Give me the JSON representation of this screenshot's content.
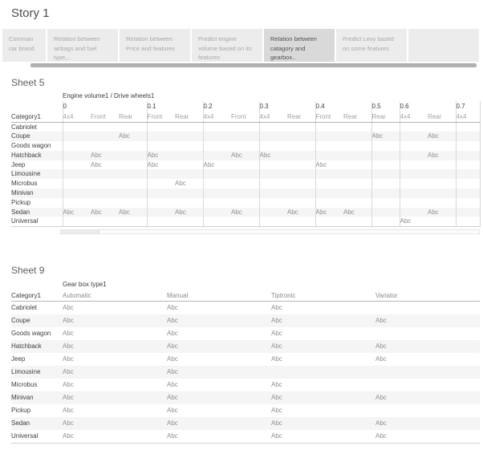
{
  "story": {
    "title": "Story 1",
    "tabs": [
      {
        "label": "Comman car brand",
        "selected": false
      },
      {
        "label": "Relation between airbags and fuel type,..",
        "selected": false
      },
      {
        "label": "Relation between Price and features",
        "selected": false
      },
      {
        "label": "Predict engine volume based on its features",
        "selected": false
      },
      {
        "label": "Relation between catagory and gearbox..",
        "selected": true
      },
      {
        "label": "Predict Levy based on some features",
        "selected": false
      },
      {
        "label": "",
        "selected": false
      }
    ]
  },
  "sheet5": {
    "title": "Sheet 5",
    "column_header_title": "Engine volume1 / Drive wheels1",
    "row_header_title": "Category1",
    "mark_label": "Abc",
    "column_groups": [
      {
        "label": "0",
        "subs": [
          "4x4",
          "Front",
          "Rear"
        ]
      },
      {
        "label": "0.1",
        "subs": [
          "Front",
          "Rear"
        ]
      },
      {
        "label": "0.2",
        "subs": [
          "4x4",
          "Front"
        ]
      },
      {
        "label": "0.3",
        "subs": [
          "4x4",
          "Rear"
        ]
      },
      {
        "label": "0.4",
        "subs": [
          "Front",
          "Rear"
        ]
      },
      {
        "label": "0.5",
        "subs": [
          "Rear"
        ]
      },
      {
        "label": "0.6",
        "subs": [
          "4x4",
          "Rear"
        ]
      },
      {
        "label": "0.7",
        "subs": [
          "4x4"
        ]
      }
    ],
    "rows": [
      {
        "label": "Cabriolet",
        "cells": [
          "",
          "",
          "",
          "",
          "",
          "",
          "",
          "",
          "",
          "",
          "",
          "",
          "",
          "",
          ""
        ]
      },
      {
        "label": "Coupe",
        "cells": [
          "",
          "",
          "Abc",
          "",
          "",
          "",
          "",
          "",
          "",
          "",
          "",
          "Abc",
          "",
          "Abc",
          ""
        ]
      },
      {
        "label": "Goods wagon",
        "cells": [
          "",
          "",
          "",
          "",
          "",
          "",
          "",
          "",
          "",
          "",
          "",
          "",
          "",
          "",
          ""
        ]
      },
      {
        "label": "Hatchback",
        "cells": [
          "",
          "Abc",
          "",
          "Abc",
          "",
          "",
          "Abc",
          "Abc",
          "",
          "",
          "",
          "",
          "",
          "Abc",
          ""
        ]
      },
      {
        "label": "Jeep",
        "cells": [
          "",
          "Abc",
          "",
          "Abc",
          "",
          "Abc",
          "",
          "",
          "",
          "Abc",
          "",
          "",
          "",
          "",
          ""
        ]
      },
      {
        "label": "Limousine",
        "cells": [
          "",
          "",
          "",
          "",
          "",
          "",
          "",
          "",
          "",
          "",
          "",
          "",
          "",
          "",
          ""
        ]
      },
      {
        "label": "Microbus",
        "cells": [
          "",
          "",
          "",
          "",
          "Abc",
          "",
          "",
          "",
          "",
          "",
          "",
          "",
          "",
          "",
          ""
        ]
      },
      {
        "label": "Minivan",
        "cells": [
          "",
          "",
          "",
          "",
          "",
          "",
          "",
          "",
          "",
          "",
          "",
          "",
          "",
          "",
          ""
        ]
      },
      {
        "label": "Pickup",
        "cells": [
          "",
          "",
          "",
          "",
          "",
          "",
          "",
          "",
          "",
          "",
          "",
          "",
          "",
          "",
          ""
        ]
      },
      {
        "label": "Sedan",
        "cells": [
          "Abc",
          "Abc",
          "Abc",
          "",
          "Abc",
          "",
          "Abc",
          "",
          "Abc",
          "Abc",
          "Abc",
          "",
          "",
          "Abc",
          ""
        ]
      },
      {
        "label": "Universal",
        "cells": [
          "",
          "",
          "",
          "",
          "",
          "",
          "",
          "",
          "",
          "",
          "",
          "",
          "Abc",
          "",
          ""
        ]
      }
    ]
  },
  "sheet9": {
    "title": "Sheet 9",
    "column_header_title": "Gear box type1",
    "row_header_title": "Category1",
    "mark_label": "Abc",
    "columns": [
      "Automatic",
      "Manual",
      "Tiptronic",
      "Variator"
    ],
    "rows": [
      {
        "label": "Cabriolet",
        "cells": [
          "Abc",
          "Abc",
          "Abc",
          ""
        ]
      },
      {
        "label": "Coupe",
        "cells": [
          "Abc",
          "Abc",
          "Abc",
          "Abc"
        ]
      },
      {
        "label": "Goods wagon",
        "cells": [
          "Abc",
          "Abc",
          "Abc",
          ""
        ]
      },
      {
        "label": "Hatchback",
        "cells": [
          "Abc",
          "Abc",
          "Abc",
          "Abc"
        ]
      },
      {
        "label": "Jeep",
        "cells": [
          "Abc",
          "Abc",
          "Abc",
          "Abc"
        ]
      },
      {
        "label": "Limousine",
        "cells": [
          "Abc",
          "Abc",
          "",
          ""
        ]
      },
      {
        "label": "Microbus",
        "cells": [
          "Abc",
          "Abc",
          "Abc",
          ""
        ]
      },
      {
        "label": "Minivan",
        "cells": [
          "Abc",
          "Abc",
          "Abc",
          "Abc"
        ]
      },
      {
        "label": "Pickup",
        "cells": [
          "Abc",
          "Abc",
          "Abc",
          ""
        ]
      },
      {
        "label": "Sedan",
        "cells": [
          "Abc",
          "Abc",
          "Abc",
          "Abc"
        ]
      },
      {
        "label": "Universal",
        "cells": [
          "Abc",
          "Abc",
          "Abc",
          "Abc"
        ]
      }
    ]
  },
  "colors": {
    "tab_bg": "#ececec",
    "tab_selected_bg": "#d9d9d9",
    "tab_text": "#a9a9a9",
    "tab_selected_text": "#525252",
    "scrollbar_thumb": "#b2b2b2",
    "row_stripe": "#f5f5f5",
    "grid_line": "#d9d9d9",
    "header_text": "#3c3c3c",
    "subheader_text": "#a2a2a2",
    "mark_text": "#8f8f8f"
  }
}
